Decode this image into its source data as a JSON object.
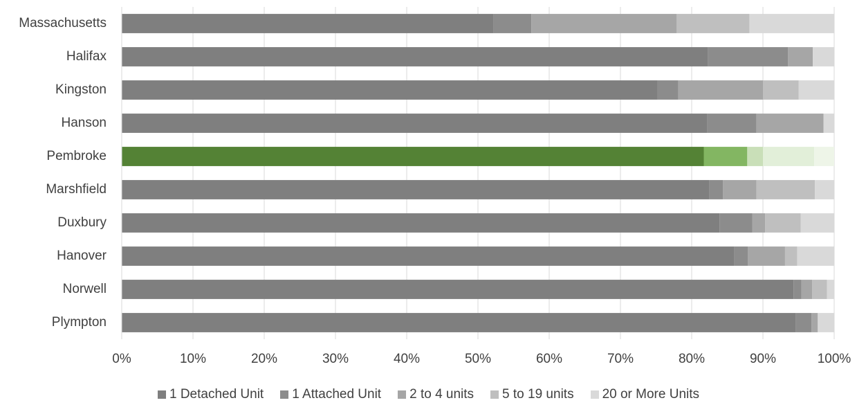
{
  "chart_data": {
    "type": "bar",
    "orientation": "horizontal",
    "stacked": true,
    "percent_stacked": true,
    "categories": [
      "Massachusetts",
      "Halifax",
      "Kingston",
      "Hanson",
      "Pembroke",
      "Marshfield",
      "Duxbury",
      "Hanover",
      "Norwell",
      "Plympton"
    ],
    "series": [
      {
        "name": "1 Detached Unit",
        "color": "#7f7f7f",
        "values": [
          52.2,
          82.3,
          75.2,
          82.2,
          81.7,
          82.5,
          83.9,
          86.0,
          94.3,
          94.6
        ]
      },
      {
        "name": "1 Attached Unit",
        "color": "#8c8c8c",
        "values": [
          5.3,
          11.2,
          2.9,
          6.9,
          6.1,
          1.9,
          4.6,
          1.9,
          1.1,
          2.2
        ]
      },
      {
        "name": "2 to 4 units",
        "color": "#a6a6a6",
        "values": [
          20.4,
          3.5,
          11.9,
          9.4,
          2.2,
          4.7,
          1.8,
          5.2,
          1.5,
          0.9
        ]
      },
      {
        "name": "5 to 19 units",
        "color": "#bfbfbf",
        "values": [
          10.2,
          0.0,
          5.0,
          0.0,
          7.2,
          8.2,
          5.0,
          1.7,
          2.1,
          0.0
        ]
      },
      {
        "name": "20 or More Units",
        "color": "#d9d9d9",
        "values": [
          11.9,
          3.0,
          5.0,
          1.5,
          2.8,
          2.7,
          4.7,
          5.2,
          1.0,
          2.3
        ]
      }
    ],
    "highlight": {
      "category": "Pembroke",
      "colors": [
        "#548235",
        "#83b662",
        "#c9dfb8",
        "#e2efd9",
        "#eef5e8"
      ]
    },
    "x_ticks": [
      "0%",
      "10%",
      "20%",
      "30%",
      "40%",
      "50%",
      "60%",
      "70%",
      "80%",
      "90%",
      "100%"
    ],
    "xlim": [
      0,
      100
    ],
    "grid": true,
    "legend_position": "bottom",
    "title": "",
    "xlabel": "",
    "ylabel": ""
  }
}
